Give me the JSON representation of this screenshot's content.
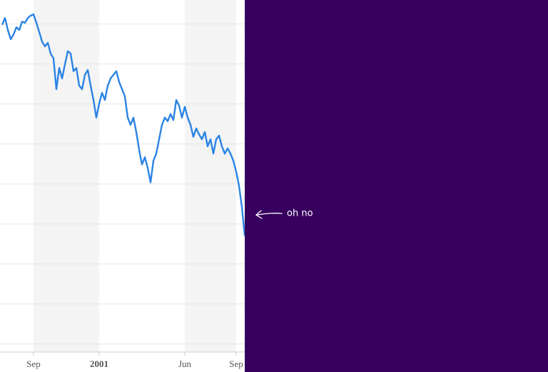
{
  "chart_data": {
    "type": "line",
    "categories": [
      null,
      null,
      null,
      null,
      null,
      null,
      null,
      null,
      null,
      null,
      null,
      "Sep",
      null,
      null,
      null,
      null,
      null,
      null,
      null,
      null,
      null,
      null,
      null,
      null,
      null,
      null,
      null,
      null,
      null,
      null,
      null,
      null,
      null,
      null,
      "2001",
      null,
      null,
      null,
      null,
      null,
      null,
      null,
      null,
      null,
      null,
      null,
      null,
      null,
      null,
      null,
      null,
      null,
      null,
      null,
      null,
      null,
      null,
      null,
      null,
      null,
      null,
      null,
      null,
      null,
      "Jun",
      null,
      null,
      null,
      null,
      null,
      null,
      null,
      null,
      null,
      null,
      null,
      null,
      null,
      null,
      null,
      null,
      null,
      "Sep",
      null,
      null,
      null
    ],
    "series": [
      {
        "color": "#2a84e4",
        "values": [
          79.8,
          81.5,
          78.5,
          76.2,
          77.4,
          79.2,
          78.5,
          80.6,
          80.3,
          81.5,
          82.1,
          82.4,
          80.3,
          78.0,
          75.6,
          74.4,
          75.3,
          72.6,
          71.4,
          63.7,
          69.0,
          66.4,
          69.9,
          73.2,
          72.6,
          68.2,
          69.0,
          64.6,
          63.7,
          67.3,
          68.5,
          64.6,
          61.0,
          56.6,
          60.1,
          62.8,
          61.0,
          64.6,
          66.4,
          67.3,
          68.2,
          65.5,
          63.7,
          61.9,
          56.6,
          54.8,
          56.6,
          53.0,
          48.5,
          44.9,
          46.7,
          44.0,
          40.4,
          45.8,
          47.6,
          51.2,
          54.8,
          56.6,
          55.7,
          57.5,
          56.0,
          61.0,
          59.6,
          56.6,
          59.3,
          56.6,
          54.8,
          51.8,
          53.9,
          52.4,
          51.2,
          53.0,
          49.4,
          51.2,
          47.6,
          51.2,
          52.1,
          49.4,
          47.6,
          48.9,
          47.6,
          45.8,
          43.1,
          39.5,
          34.2,
          27.1
        ]
      }
    ],
    "ylim": [
      -2,
      86
    ],
    "yticks": [
      0,
      10,
      20,
      30,
      40,
      50,
      60,
      70,
      80
    ],
    "grid": true,
    "annotation": "oh no"
  }
}
